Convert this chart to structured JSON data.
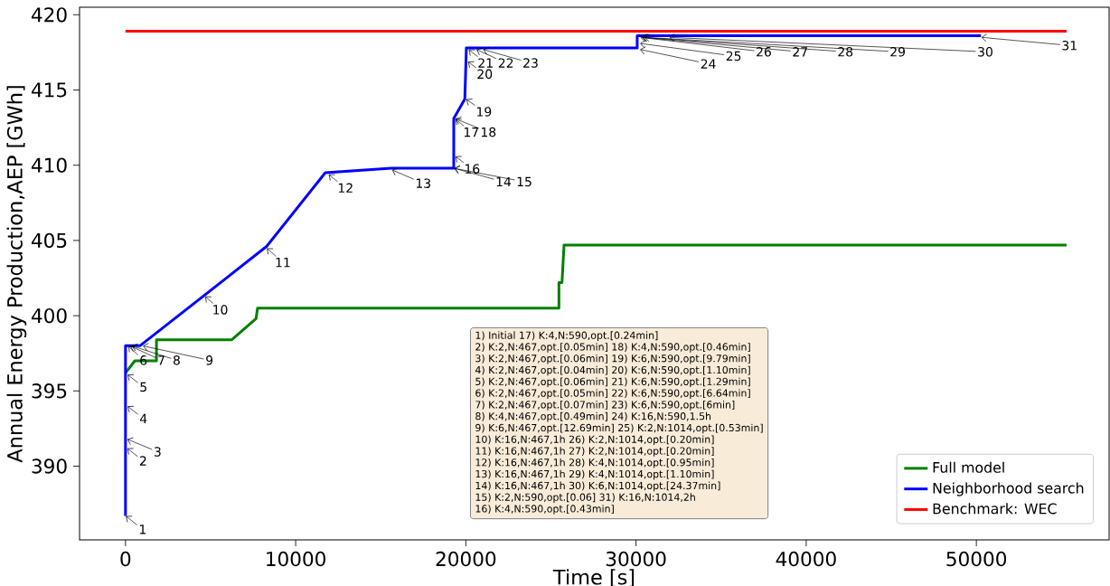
{
  "chart_data": {
    "type": "line",
    "xlabel": "Time [s]",
    "ylabel": "Annual Energy Production,AEP [GWh]",
    "xlim": [
      -2700,
      57800
    ],
    "ylim": [
      385.1,
      420.5
    ],
    "xticks": [
      0,
      10000,
      20000,
      30000,
      40000,
      50000
    ],
    "yticks": [
      390,
      395,
      400,
      405,
      410,
      415,
      420
    ],
    "grid": false,
    "legend": "bottom right",
    "series": [
      {
        "name": "Full model",
        "color": "#008000",
        "x": [
          0,
          550,
          1820,
          1820,
          6250,
          7670,
          7760,
          25470,
          25470,
          25650,
          25770,
          55300
        ],
        "values": [
          396.2,
          397.0,
          397.0,
          398.4,
          398.4,
          399.8,
          400.5,
          400.5,
          402.2,
          402.2,
          404.7,
          404.7
        ]
      },
      {
        "name": "Neighborhood search",
        "color": "#0000ff",
        "x": [
          0,
          0,
          850,
          8290,
          11740,
          15620,
          19290,
          19290,
          19940,
          20030,
          30070,
          30070,
          50270
        ],
        "values": [
          386.7,
          398.0,
          398.0,
          404.6,
          409.5,
          409.8,
          409.8,
          413.1,
          414.4,
          417.8,
          417.8,
          418.6,
          418.6
        ]
      },
      {
        "name": "Benchmark: WEC",
        "color": "#ff0000",
        "x": [
          0,
          55300
        ],
        "values": [
          418.9,
          418.9
        ]
      }
    ],
    "annotations": [
      {
        "text": "1",
        "x": 0,
        "y": 386.7
      },
      {
        "text": "2",
        "x": 80,
        "y": 391.2
      },
      {
        "text": "3",
        "x": 80,
        "y": 391.8
      },
      {
        "text": "4",
        "x": 100,
        "y": 394.0
      },
      {
        "text": "5",
        "x": 100,
        "y": 396.1
      },
      {
        "text": "6",
        "x": 150,
        "y": 398.0
      },
      {
        "text": "7",
        "x": 250,
        "y": 398.0
      },
      {
        "text": "8",
        "x": 350,
        "y": 398.0
      },
      {
        "text": "9",
        "x": 1000,
        "y": 398.0
      },
      {
        "text": "10",
        "x": 4660,
        "y": 401.3
      },
      {
        "text": "11",
        "x": 8290,
        "y": 404.5
      },
      {
        "text": "12",
        "x": 11920,
        "y": 409.4
      },
      {
        "text": "13",
        "x": 15640,
        "y": 409.7
      },
      {
        "text": "14",
        "x": 19290,
        "y": 409.8
      },
      {
        "text": "15",
        "x": 19290,
        "y": 409.8
      },
      {
        "text": "16",
        "x": 19360,
        "y": 410.6
      },
      {
        "text": "17",
        "x": 19360,
        "y": 413.1
      },
      {
        "text": "18",
        "x": 19360,
        "y": 413.1
      },
      {
        "text": "19",
        "x": 20000,
        "y": 414.4
      },
      {
        "text": "20",
        "x": 20100,
        "y": 416.9
      },
      {
        "text": "21",
        "x": 20150,
        "y": 417.7
      },
      {
        "text": "22",
        "x": 20600,
        "y": 417.7
      },
      {
        "text": "23",
        "x": 20990,
        "y": 417.7
      },
      {
        "text": "24",
        "x": 30210,
        "y": 417.7
      },
      {
        "text": "25",
        "x": 30210,
        "y": 418.1
      },
      {
        "text": "26",
        "x": 30230,
        "y": 418.5
      },
      {
        "text": "27",
        "x": 30300,
        "y": 418.5
      },
      {
        "text": "28",
        "x": 30350,
        "y": 418.5
      },
      {
        "text": "29",
        "x": 30450,
        "y": 418.5
      },
      {
        "text": "30",
        "x": 31930,
        "y": 418.5
      },
      {
        "text": "31",
        "x": 50270,
        "y": 418.5
      },
      "1) Initial 17) K:4,N:590,opt.[0.24min]",
      "2) K:2,N:467,opt.[0.05min] 18) K:4,N:590,opt.[0.46min]",
      "3) K:2,N:467,opt.[0.06min] 19) K:6,N:590,opt.[9.79min]",
      "4) K:2,N:467,opt.[0.04min] 20) K:6,N:590,opt.[1.10min]",
      "5) K:2,N:467,opt.[0.06min] 21) K:6,N:590,opt.[1.29min]",
      "6) K:2,N:467,opt.[0.05min] 22) K:6,N:590,opt.[6.64min]",
      "7) K:2,N:467,opt.[0.07min] 23) K:6,N:590,opt.[6min]",
      "8) K:4,N:467,opt.[0.49min] 24) K:16,N:590,1.5h",
      "9) K:6,N:467,opt.[12.69min] 25) K:2,N:1014,opt.[0.53min]",
      "10) K:16,N:467,1h 26) K:2,N:1014,opt.[0.20min]",
      "11) K:16,N:467,1h 27) K:2,N:1014,opt.[0.20min]",
      "12) K:16,N:467,1h 28) K:4,N:1014,opt.[0.95min]",
      "13) K:16,N:467,1h 29) K:4,N:1014,opt.[1.10min]",
      "14) K:16,N:467,1h 30) K:6,N:1014,opt.[24.37min]",
      "15) K:2,N:590,opt.[0.06] 31) K:16,N:1014,2h",
      "16) K:4,N:590,opt.[0.43min]"
    ]
  }
}
